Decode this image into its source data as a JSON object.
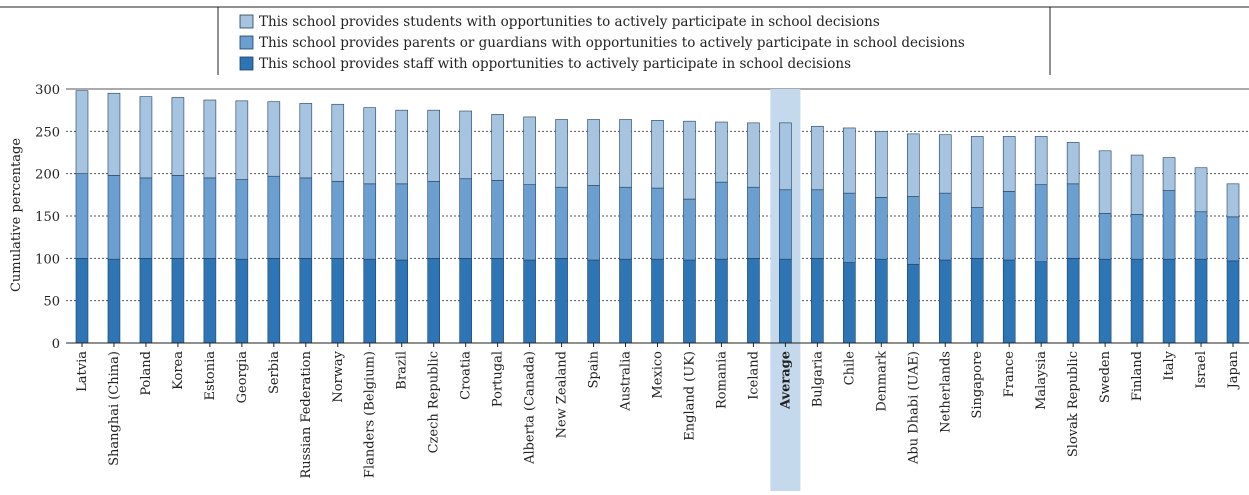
{
  "chart_data": {
    "type": "bar",
    "stacked": true,
    "ylabel": "Cumulative percentage",
    "ylim": [
      0,
      300
    ],
    "yticks": [
      0,
      50,
      100,
      150,
      200,
      250,
      300
    ],
    "grid": "dotted horizontal",
    "legend_position": "top-center",
    "highlight_category": "Average",
    "categories": [
      "Latvia",
      "Shanghai (China)",
      "Poland",
      "Korea",
      "Estonia",
      "Georgia",
      "Serbia",
      "Russian Federation",
      "Norway",
      "Flanders (Belgium)",
      "Brazil",
      "Czech Republic",
      "Croatia",
      "Portugal",
      "Alberta (Canada)",
      "New Zealand",
      "Spain",
      "Australia",
      "Mexico",
      "England (UK)",
      "Romania",
      "Iceland",
      "Average",
      "Bulgaria",
      "Chile",
      "Denmark",
      "Abu Dhabi (UAE)",
      "Netherlands",
      "Singapore",
      "France",
      "Malaysia",
      "Slovak Republic",
      "Sweden",
      "Finland",
      "Italy",
      "Israel",
      "Japan"
    ],
    "series": [
      {
        "name": "This school provides staff with opportunities to actively participate in school decisions",
        "color": "#2e75b6",
        "values": [
          100,
          99,
          100,
          100,
          100,
          99,
          100,
          100,
          100,
          99,
          98,
          100,
          100,
          100,
          98,
          100,
          98,
          99,
          99,
          98,
          99,
          100,
          99,
          100,
          95,
          99,
          93,
          98,
          100,
          98,
          96,
          100,
          99,
          99,
          99,
          99,
          97
        ]
      },
      {
        "name": "This school provides parents or guardians with opportunities to actively participate in school decisions",
        "color": "#6a9fd0",
        "values": [
          100,
          99,
          95,
          98,
          95,
          94,
          97,
          95,
          91,
          89,
          90,
          91,
          94,
          92,
          89,
          84,
          88,
          85,
          84,
          72,
          91,
          84,
          82,
          81,
          82,
          73,
          80,
          79,
          60,
          81,
          91,
          88,
          54,
          53,
          81,
          56,
          52
        ]
      },
      {
        "name": "This school provides students with opportunities to actively participate in school decisions",
        "color": "#a6c4e0",
        "values": [
          98,
          97,
          96,
          92,
          92,
          93,
          88,
          88,
          91,
          90,
          87,
          84,
          80,
          78,
          80,
          80,
          78,
          80,
          80,
          92,
          71,
          76,
          79,
          75,
          77,
          78,
          74,
          69,
          84,
          65,
          57,
          49,
          74,
          70,
          39,
          52,
          39
        ]
      }
    ]
  }
}
